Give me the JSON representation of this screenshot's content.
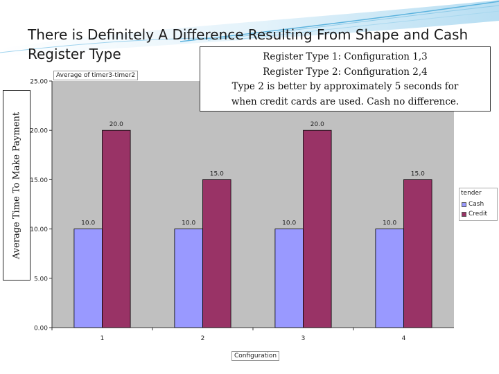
{
  "slide": {
    "title": "There is Definitely A Difference Resulting From Shape and Cash Register Type",
    "y_axis_outer_label": "Average Time To Make Payment",
    "note_lines": [
      "Register Type 1: Configuration 1,3",
      "Register Type 2: Configuration 2,4",
      "Type 2 is better by approximately 5 seconds for",
      "when credit cards are used.  Cash no difference."
    ]
  },
  "pivot": {
    "data_field_button": "Average of timer3-timer2",
    "category_field_button": "Configuration",
    "legend_field_title": "tender"
  },
  "colors": {
    "cash": "#9999ff",
    "credit": "#993366",
    "plot_bg": "#c0c0c0",
    "accent": "#4aa8d8"
  },
  "chart_data": {
    "type": "bar",
    "categories": [
      "1",
      "2",
      "3",
      "4"
    ],
    "series": [
      {
        "name": "Cash",
        "values": [
          10.0,
          10.0,
          10.0,
          10.0
        ]
      },
      {
        "name": "Credit",
        "values": [
          20.0,
          15.0,
          20.0,
          15.0
        ]
      }
    ],
    "data_labels": true,
    "value_format": "0.0",
    "xlabel": "Configuration",
    "ylabel": "Average Time To Make Payment",
    "ylim": [
      0,
      25
    ],
    "yticks": [
      "0.00",
      "5.00",
      "10.00",
      "15.00",
      "20.00",
      "25.00"
    ],
    "grid": false,
    "legend": "right"
  }
}
